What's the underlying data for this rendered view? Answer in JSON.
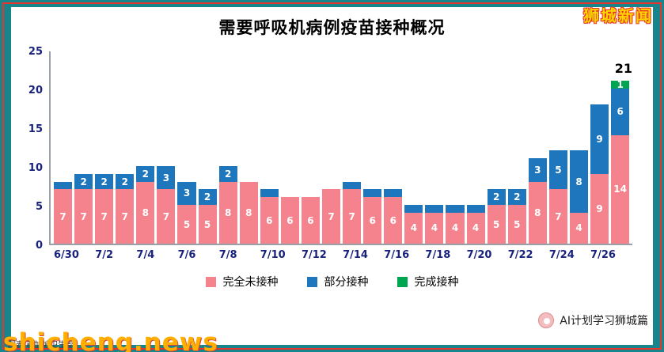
{
  "frame": {
    "background_color": "#17858b",
    "border_color": "#e8342a"
  },
  "brand": {
    "name": "狮城新闻"
  },
  "watermarks": {
    "site": "shicheng.news",
    "caption": "图表:新加坡卫生部",
    "account": "AI计划学习狮城篇"
  },
  "chart_data": {
    "type": "bar",
    "stacked": true,
    "title": "需要呼吸机病例疫苗接种概况",
    "xlabel": "",
    "ylabel": "",
    "ylim": [
      0,
      25
    ],
    "y_ticks": [
      0,
      5,
      10,
      15,
      20,
      25
    ],
    "grid": false,
    "legend_position": "bottom",
    "x_tick_labels": [
      "6/30",
      "7/2",
      "7/4",
      "7/6",
      "7/8",
      "7/10",
      "7/12",
      "7/14",
      "7/16",
      "7/18",
      "7/20",
      "7/22",
      "7/24",
      "7/26"
    ],
    "x_tick_every": 2,
    "annotation": {
      "text": "21",
      "position": "above-last-bar"
    },
    "label_min_value": 2,
    "series": [
      {
        "name": "完全未接种",
        "color": "#f4838d",
        "values": [
          7,
          7,
          7,
          7,
          8,
          7,
          5,
          5,
          8,
          8,
          6,
          6,
          6,
          7,
          7,
          6,
          6,
          4,
          4,
          4,
          4,
          5,
          5,
          8,
          7,
          4,
          9,
          14
        ]
      },
      {
        "name": "部分接种",
        "color": "#1e76bc",
        "values": [
          1,
          2,
          2,
          2,
          2,
          3,
          3,
          2,
          2,
          0,
          1,
          0,
          0,
          0,
          1,
          1,
          1,
          1,
          1,
          1,
          1,
          2,
          2,
          3,
          5,
          8,
          9,
          6
        ]
      },
      {
        "name": "完成接种",
        "color": "#00a551",
        "values": [
          0,
          0,
          0,
          0,
          0,
          0,
          0,
          0,
          0,
          0,
          0,
          0,
          0,
          0,
          0,
          0,
          0,
          0,
          0,
          0,
          0,
          0,
          0,
          0,
          0,
          0,
          0,
          1
        ]
      }
    ]
  }
}
